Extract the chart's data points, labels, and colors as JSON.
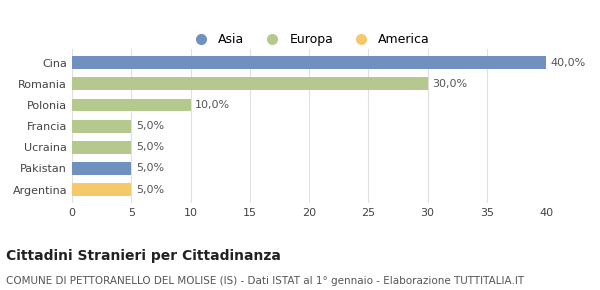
{
  "categories": [
    "Cina",
    "Romania",
    "Polonia",
    "Francia",
    "Ucraina",
    "Pakistan",
    "Argentina"
  ],
  "values": [
    40.0,
    30.0,
    10.0,
    5.0,
    5.0,
    5.0,
    5.0
  ],
  "bar_colors": [
    "#7090c0",
    "#b5c98e",
    "#b5c98e",
    "#b5c98e",
    "#b5c98e",
    "#7090c0",
    "#f5c96a"
  ],
  "labels": [
    "40,0%",
    "30,0%",
    "10,0%",
    "5,0%",
    "5,0%",
    "5,0%",
    "5,0%"
  ],
  "xlim": [
    0,
    40
  ],
  "xticks": [
    0,
    5,
    10,
    15,
    20,
    25,
    30,
    35,
    40
  ],
  "legend_labels": [
    "Asia",
    "Europa",
    "America"
  ],
  "legend_colors": [
    "#7090c0",
    "#b5c98e",
    "#f5c96a"
  ],
  "title": "Cittadini Stranieri per Cittadinanza",
  "subtitle": "COMUNE DI PETTORANELLO DEL MOLISE (IS) - Dati ISTAT al 1° gennaio - Elaborazione TUTTITALIA.IT",
  "background_color": "#ffffff",
  "grid_color": "#e0e0e0",
  "title_fontsize": 10,
  "subtitle_fontsize": 7.5,
  "label_fontsize": 8,
  "tick_fontsize": 8
}
